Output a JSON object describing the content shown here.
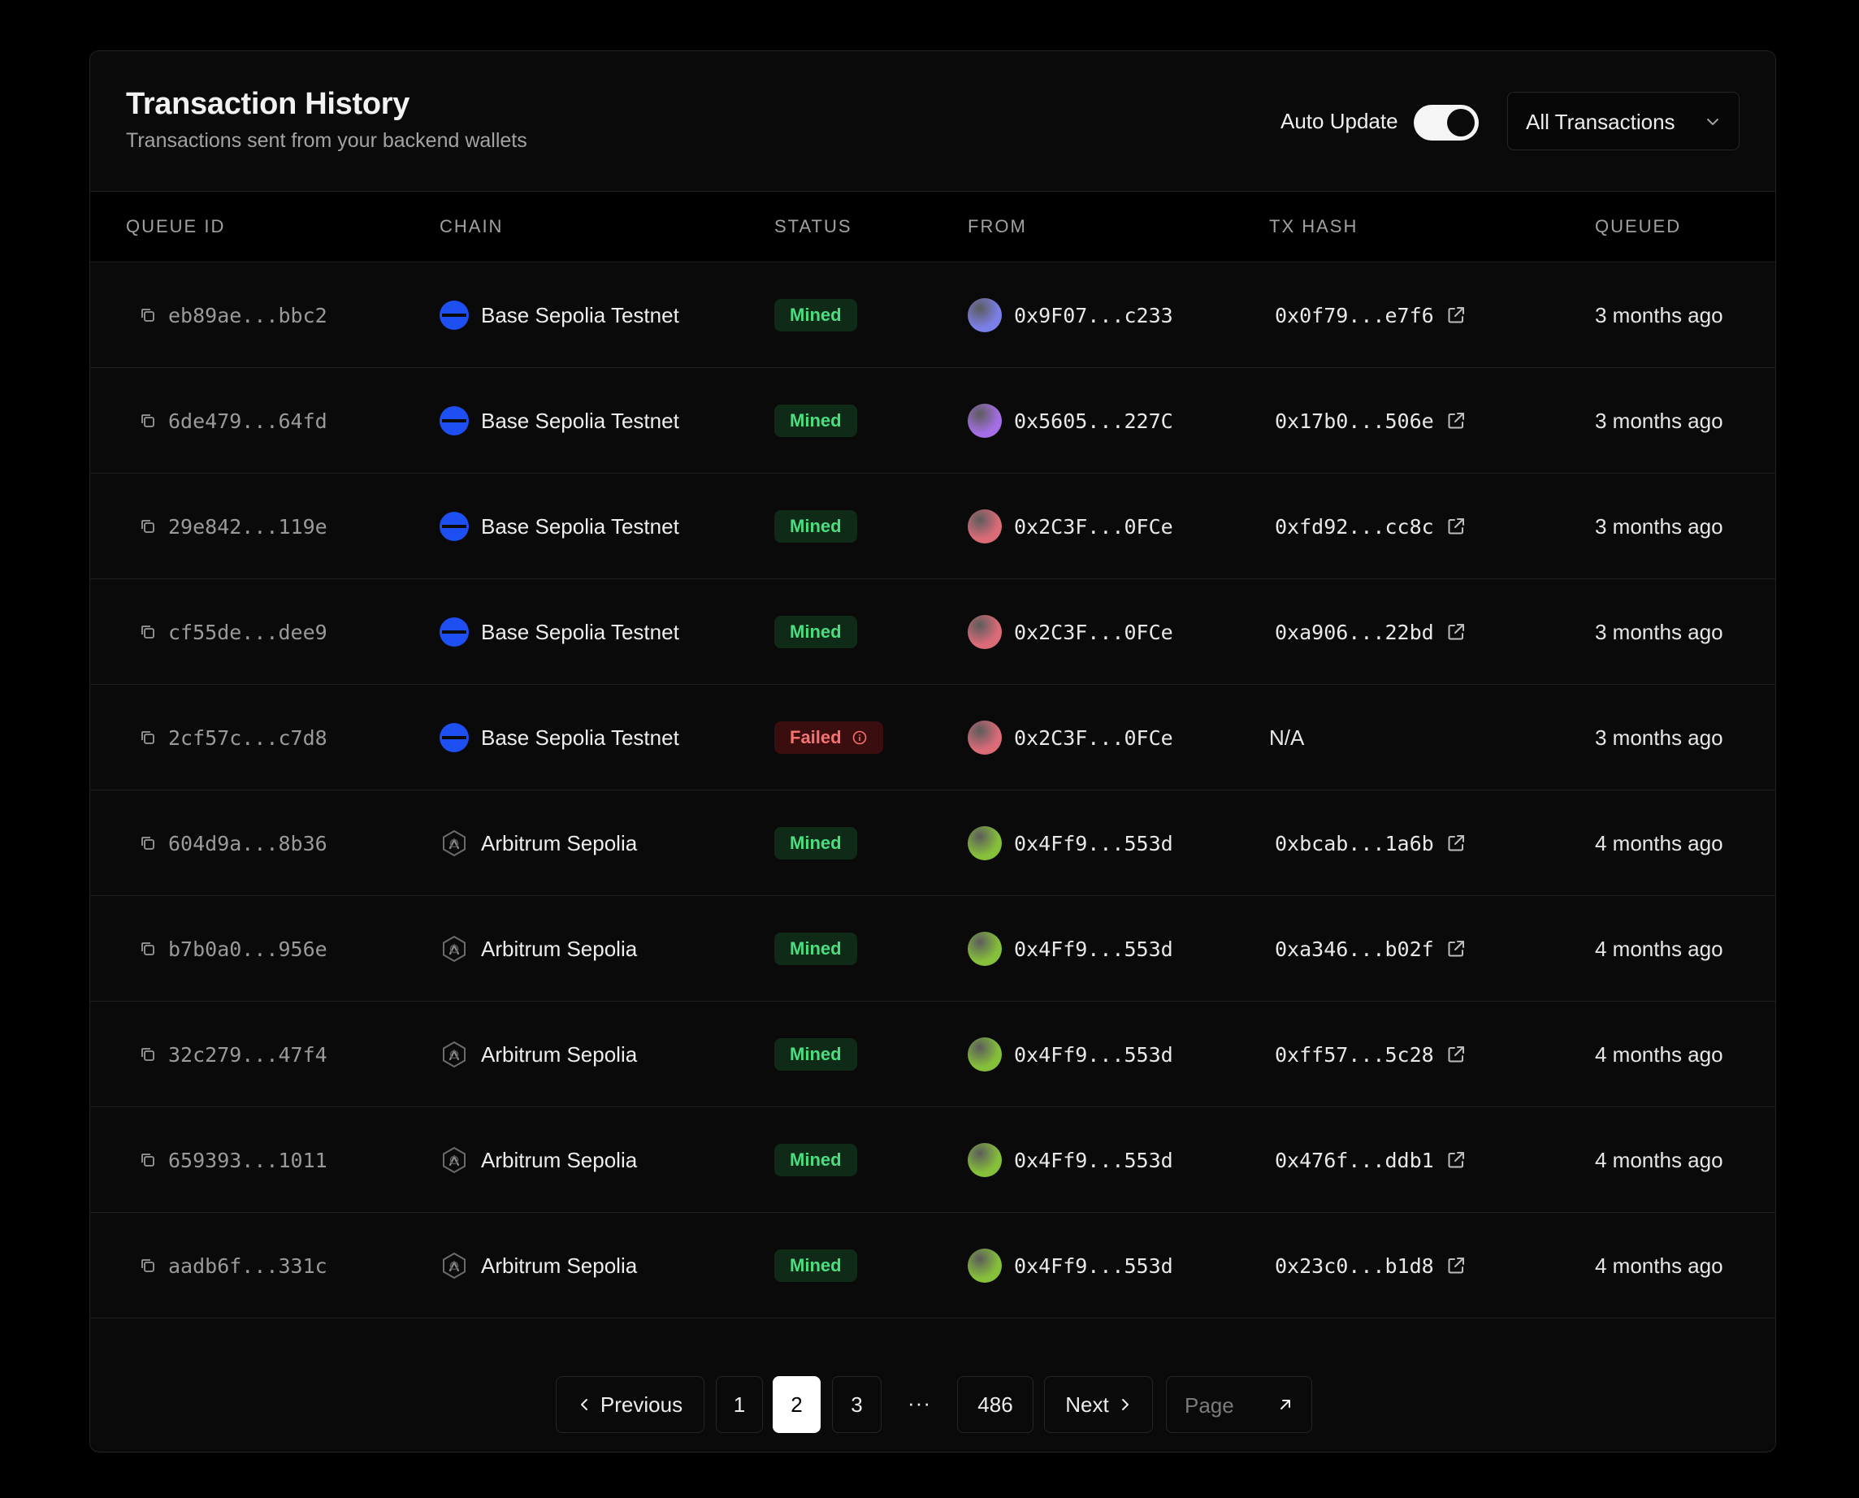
{
  "header": {
    "title": "Transaction History",
    "subtitle": "Transactions sent from your backend wallets",
    "auto_update_label": "Auto Update",
    "auto_update_on": true,
    "filter_value": "All Transactions"
  },
  "columns": [
    "QUEUE ID",
    "CHAIN",
    "STATUS",
    "FROM",
    "TX HASH",
    "QUEUED"
  ],
  "rows": [
    {
      "queue_id": "eb89ae...bbc2",
      "chain": "Base Sepolia Testnet",
      "chain_icon": "base-chain-icon",
      "status": "Mined",
      "from": "0x9F07...c233",
      "avatar_color": "#7b7fe8",
      "tx_hash": "0x0f79...e7f6",
      "queued": "3 months ago"
    },
    {
      "queue_id": "6de479...64fd",
      "chain": "Base Sepolia Testnet",
      "chain_icon": "base-chain-icon",
      "status": "Mined",
      "from": "0x5605...227C",
      "avatar_color": "#a56ee6",
      "tx_hash": "0x17b0...506e",
      "queued": "3 months ago"
    },
    {
      "queue_id": "29e842...119e",
      "chain": "Base Sepolia Testnet",
      "chain_icon": "base-chain-icon",
      "status": "Mined",
      "from": "0x2C3F...0FCe",
      "avatar_color": "#dc6b78",
      "tx_hash": "0xfd92...cc8c",
      "queued": "3 months ago"
    },
    {
      "queue_id": "cf55de...dee9",
      "chain": "Base Sepolia Testnet",
      "chain_icon": "base-chain-icon",
      "status": "Mined",
      "from": "0x2C3F...0FCe",
      "avatar_color": "#dc6b78",
      "tx_hash": "0xa906...22bd",
      "queued": "3 months ago"
    },
    {
      "queue_id": "2cf57c...c7d8",
      "chain": "Base Sepolia Testnet",
      "chain_icon": "base-chain-icon",
      "status": "Failed",
      "from": "0x2C3F...0FCe",
      "avatar_color": "#dc6b78",
      "tx_hash": "N/A",
      "queued": "3 months ago"
    },
    {
      "queue_id": "604d9a...8b36",
      "chain": "Arbitrum Sepolia",
      "chain_icon": "arbitrum-chain-icon",
      "status": "Mined",
      "from": "0x4Ff9...553d",
      "avatar_color": "#86c03a",
      "tx_hash": "0xbcab...1a6b",
      "queued": "4 months ago"
    },
    {
      "queue_id": "b7b0a0...956e",
      "chain": "Arbitrum Sepolia",
      "chain_icon": "arbitrum-chain-icon",
      "status": "Mined",
      "from": "0x4Ff9...553d",
      "avatar_color": "#86c03a",
      "tx_hash": "0xa346...b02f",
      "queued": "4 months ago"
    },
    {
      "queue_id": "32c279...47f4",
      "chain": "Arbitrum Sepolia",
      "chain_icon": "arbitrum-chain-icon",
      "status": "Mined",
      "from": "0x4Ff9...553d",
      "avatar_color": "#86c03a",
      "tx_hash": "0xff57...5c28",
      "queued": "4 months ago"
    },
    {
      "queue_id": "659393...1011",
      "chain": "Arbitrum Sepolia",
      "chain_icon": "arbitrum-chain-icon",
      "status": "Mined",
      "from": "0x4Ff9...553d",
      "avatar_color": "#86c03a",
      "tx_hash": "0x476f...ddb1",
      "queued": "4 months ago"
    },
    {
      "queue_id": "aadb6f...331c",
      "chain": "Arbitrum Sepolia",
      "chain_icon": "arbitrum-chain-icon",
      "status": "Mined",
      "from": "0x4Ff9...553d",
      "avatar_color": "#86c03a",
      "tx_hash": "0x23c0...b1d8",
      "queued": "4 months ago"
    }
  ],
  "pagination": {
    "previous_label": "Previous",
    "next_label": "Next",
    "pages": [
      "1",
      "2",
      "3"
    ],
    "current_page": "2",
    "ellipsis": "···",
    "last_page": "486",
    "page_input_placeholder": "Page"
  },
  "colors": {
    "mined_bg": "#0f2a17",
    "mined_text": "#4ade80",
    "failed_bg": "#3a0d0f",
    "failed_text": "#f87171",
    "base_blue": "#1d4ff2"
  }
}
